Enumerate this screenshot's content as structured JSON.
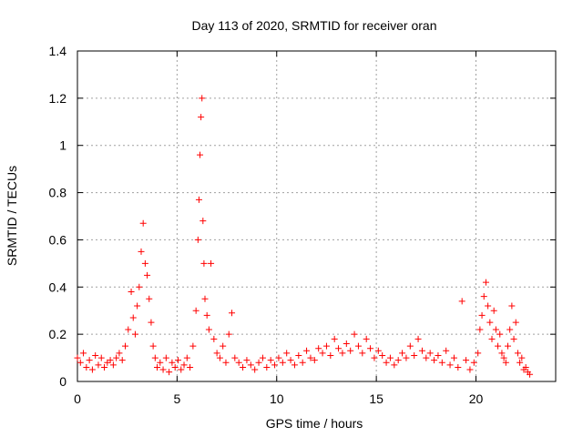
{
  "chart_data": {
    "type": "scatter",
    "title": "Day 113 of 2020, SRMTID for receiver oran",
    "xlabel": "GPS time / hours",
    "ylabel": "SRMTID / TECUs",
    "xlim": [
      0,
      24
    ],
    "ylim": [
      0,
      1.4
    ],
    "xticks": [
      0,
      5,
      10,
      15,
      20
    ],
    "xtick_labels": [
      "0",
      "5",
      "10",
      "15",
      "20"
    ],
    "yticks": [
      0,
      0.2,
      0.4,
      0.6,
      0.8,
      1.0,
      1.2,
      1.4
    ],
    "ytick_labels": [
      "0",
      "0.2",
      "0.4",
      "0.6",
      "0.8",
      "1",
      "1.2",
      "1.4"
    ],
    "grid": true,
    "marker": "+",
    "color": "#ff0000",
    "series": [
      {
        "name": "SRMTID",
        "x": [
          0.0,
          0.15,
          0.3,
          0.45,
          0.6,
          0.75,
          0.9,
          1.05,
          1.2,
          1.35,
          1.5,
          1.65,
          1.8,
          1.95,
          2.1,
          2.25,
          2.4,
          2.55,
          2.7,
          2.8,
          2.9,
          3.0,
          3.1,
          3.2,
          3.3,
          3.4,
          3.5,
          3.6,
          3.7,
          3.8,
          3.9,
          4.0,
          4.15,
          4.3,
          4.45,
          4.6,
          4.75,
          4.9,
          5.05,
          5.2,
          5.35,
          5.5,
          5.65,
          5.8,
          5.95,
          6.05,
          6.1,
          6.15,
          6.2,
          6.25,
          6.3,
          6.35,
          6.4,
          6.5,
          6.6,
          6.7,
          6.85,
          7.0,
          7.15,
          7.3,
          7.45,
          7.6,
          7.75,
          7.9,
          8.1,
          8.3,
          8.5,
          8.7,
          8.9,
          9.1,
          9.3,
          9.5,
          9.7,
          9.9,
          10.1,
          10.3,
          10.5,
          10.7,
          10.9,
          11.1,
          11.3,
          11.5,
          11.7,
          11.9,
          12.1,
          12.3,
          12.5,
          12.7,
          12.9,
          13.1,
          13.3,
          13.5,
          13.7,
          13.9,
          14.1,
          14.3,
          14.5,
          14.7,
          14.9,
          15.1,
          15.3,
          15.5,
          15.7,
          15.9,
          16.1,
          16.3,
          16.5,
          16.7,
          16.9,
          17.1,
          17.3,
          17.5,
          17.7,
          17.9,
          18.1,
          18.3,
          18.5,
          18.7,
          18.9,
          19.1,
          19.3,
          19.5,
          19.7,
          19.9,
          20.1,
          20.2,
          20.3,
          20.4,
          20.5,
          20.6,
          20.7,
          20.8,
          20.9,
          21.0,
          21.1,
          21.2,
          21.3,
          21.4,
          21.5,
          21.6,
          21.7,
          21.8,
          21.9,
          22.0,
          22.1,
          22.2,
          22.3,
          22.4,
          22.5,
          22.6,
          22.7
        ],
        "y": [
          0.1,
          0.08,
          0.12,
          0.06,
          0.09,
          0.05,
          0.11,
          0.07,
          0.1,
          0.06,
          0.08,
          0.09,
          0.07,
          0.1,
          0.12,
          0.09,
          0.15,
          0.22,
          0.38,
          0.27,
          0.2,
          0.32,
          0.4,
          0.55,
          0.67,
          0.5,
          0.45,
          0.35,
          0.25,
          0.15,
          0.1,
          0.06,
          0.08,
          0.05,
          0.1,
          0.04,
          0.08,
          0.06,
          0.09,
          0.05,
          0.07,
          0.1,
          0.06,
          0.15,
          0.3,
          0.6,
          0.77,
          0.96,
          1.12,
          1.2,
          0.68,
          0.5,
          0.35,
          0.28,
          0.22,
          0.5,
          0.18,
          0.12,
          0.1,
          0.15,
          0.08,
          0.2,
          0.29,
          0.1,
          0.08,
          0.06,
          0.09,
          0.07,
          0.05,
          0.08,
          0.1,
          0.06,
          0.09,
          0.07,
          0.1,
          0.08,
          0.12,
          0.09,
          0.07,
          0.11,
          0.08,
          0.13,
          0.1,
          0.09,
          0.14,
          0.12,
          0.15,
          0.11,
          0.18,
          0.14,
          0.12,
          0.16,
          0.13,
          0.2,
          0.15,
          0.12,
          0.18,
          0.14,
          0.1,
          0.13,
          0.11,
          0.08,
          0.1,
          0.07,
          0.09,
          0.12,
          0.1,
          0.15,
          0.11,
          0.18,
          0.13,
          0.1,
          0.12,
          0.09,
          0.11,
          0.08,
          0.13,
          0.07,
          0.1,
          0.06,
          0.34,
          0.09,
          0.05,
          0.08,
          0.12,
          0.22,
          0.28,
          0.36,
          0.42,
          0.32,
          0.25,
          0.18,
          0.3,
          0.22,
          0.15,
          0.2,
          0.12,
          0.1,
          0.08,
          0.15,
          0.22,
          0.32,
          0.18,
          0.25,
          0.12,
          0.08,
          0.1,
          0.05,
          0.06,
          0.04,
          0.03
        ]
      }
    ]
  }
}
